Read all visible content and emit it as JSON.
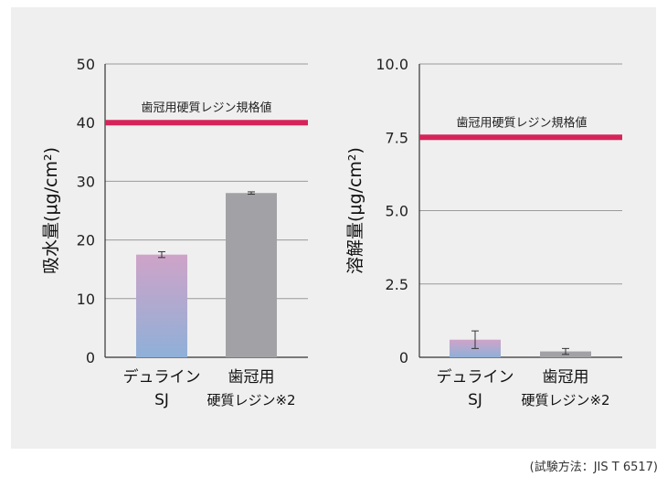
{
  "chart_data": [
    {
      "type": "bar",
      "ylabel": "吸水量(μg/cm²)",
      "ylim": [
        0,
        50
      ],
      "yticks": [
        0,
        10,
        20,
        30,
        40,
        50
      ],
      "ytick_labels": [
        "0",
        "10",
        "20",
        "30",
        "40",
        "50"
      ],
      "categories": [
        {
          "line1": "デュライン",
          "line2": "SJ"
        },
        {
          "line1": "歯冠用",
          "line2": "硬質レジン※2"
        }
      ],
      "values": [
        17.5,
        28.0
      ],
      "errors": [
        0.5,
        0.2
      ],
      "bar_styles": [
        "gradient",
        "gray"
      ],
      "reference": {
        "value": 40,
        "label": "歯冠用硬質レジン規格値"
      },
      "grid": true
    },
    {
      "type": "bar",
      "ylabel": "溶解量(μg/cm²)",
      "ylim": [
        0,
        10
      ],
      "yticks": [
        0,
        2.5,
        5,
        7.5,
        10
      ],
      "ytick_labels": [
        "0",
        "2.5",
        "5.0",
        "7.5",
        "10.0"
      ],
      "categories": [
        {
          "line1": "デュライン",
          "line2": "SJ"
        },
        {
          "line1": "歯冠用",
          "line2": "硬質レジン※2"
        }
      ],
      "values": [
        0.6,
        0.2
      ],
      "errors": [
        0.3,
        0.1
      ],
      "bar_styles": [
        "gradient",
        "gray"
      ],
      "reference": {
        "value": 7.5,
        "label": "歯冠用硬質レジン規格値"
      },
      "grid": true
    }
  ],
  "colors": {
    "reference_line": "#d6245a",
    "bar_gray": "#a2a2a6",
    "gradient_top": "#cfa3c8",
    "gradient_bottom": "#8fb0d8",
    "grid": "#9a9a9a",
    "axis": "#333333"
  },
  "footnote": "(試験方法：JIS T 6517)"
}
